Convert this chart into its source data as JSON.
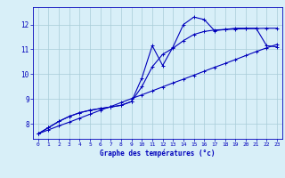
{
  "title": "Graphe des températures (°c)",
  "hours": [
    0,
    1,
    2,
    3,
    4,
    5,
    6,
    7,
    8,
    9,
    10,
    11,
    12,
    13,
    14,
    15,
    16,
    17,
    18,
    19,
    20,
    21,
    22,
    23
  ],
  "straight_y": [
    7.6,
    7.76,
    7.92,
    8.07,
    8.23,
    8.39,
    8.55,
    8.7,
    8.86,
    9.02,
    9.17,
    9.33,
    9.49,
    9.65,
    9.8,
    9.96,
    10.12,
    10.28,
    10.43,
    10.59,
    10.75,
    10.91,
    11.06,
    11.2
  ],
  "medium_y": [
    7.6,
    7.85,
    8.1,
    8.3,
    8.45,
    8.55,
    8.62,
    8.68,
    8.75,
    8.9,
    9.5,
    10.3,
    10.8,
    11.05,
    11.35,
    11.6,
    11.72,
    11.78,
    11.8,
    11.82,
    11.83,
    11.84,
    11.85,
    11.85
  ],
  "jagged_y": [
    7.6,
    7.85,
    8.1,
    8.3,
    8.45,
    8.55,
    8.62,
    8.68,
    8.75,
    8.9,
    9.85,
    11.15,
    10.35,
    11.1,
    12.0,
    12.3,
    12.2,
    11.75,
    11.8,
    11.85,
    11.85,
    11.85,
    11.15,
    11.1
  ],
  "line_color": "#0000bb",
  "bg_color": "#d8eff8",
  "grid_color": "#a8ccd8",
  "axis_color": "#0000bb",
  "text_color": "#0000bb",
  "ylim": [
    7.4,
    12.7
  ],
  "yticks": [
    8,
    9,
    10,
    11,
    12
  ],
  "xlim": [
    -0.5,
    23.5
  ]
}
